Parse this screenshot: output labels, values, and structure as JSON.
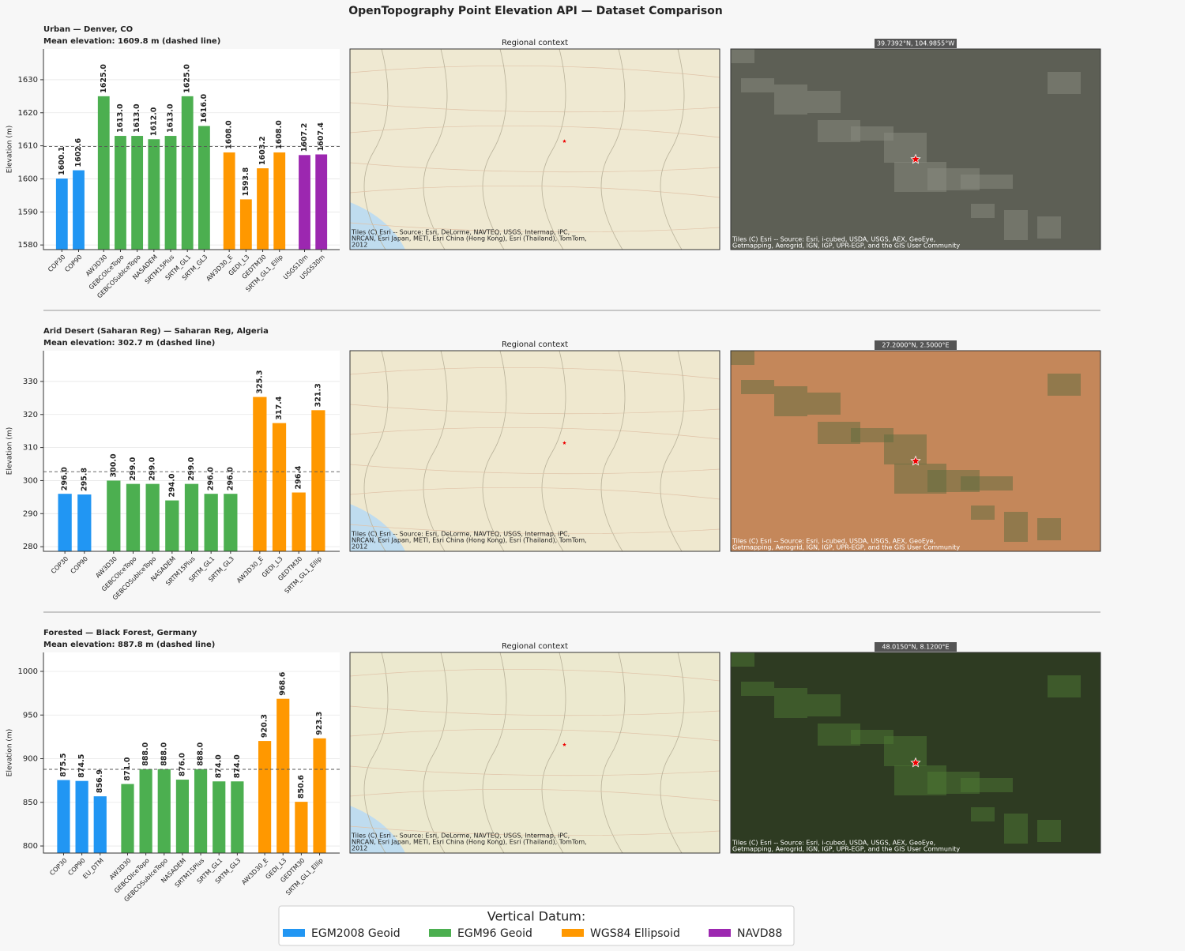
{
  "title": "OpenTopography Point Elevation API — Dataset Comparison",
  "legend": {
    "title": "Vertical Datum:",
    "position": "lower center",
    "entries": [
      {
        "name": "EGM2008 Geoid",
        "color": "#2196f3"
      },
      {
        "name": "EGM96 Geoid",
        "color": "#4caf50"
      },
      {
        "name": "WGS84 Ellipsoid",
        "color": "#ff9800"
      },
      {
        "name": "NAVD88",
        "color": "#9c27b0"
      }
    ]
  },
  "chart_data": [
    {
      "type": "bar",
      "title": "Urban  —  Denver, CO",
      "subtitle": "Mean elevation: 1609.8 m  (dashed line)",
      "mean": 1609.8,
      "ylabel": "Elevation (m)",
      "ylim": [
        1578.6,
        1639.3
      ],
      "yticks": [
        1580,
        1590,
        1600,
        1610,
        1620,
        1630
      ],
      "grid": true,
      "groups": [
        {
          "categories": [
            "COP30",
            "COP90"
          ],
          "values": [
            1600.1,
            1602.6
          ],
          "value_labels": [
            "1600.1",
            "1602.6"
          ]
        },
        {
          "categories": [
            "AW3D30",
            "GEBCOIceTopo",
            "GEBCOSubIceTopo",
            "NASADEM",
            "SRTM15Plus",
            "SRTM_GL1",
            "SRTM_GL3"
          ],
          "values": [
            1625.0,
            1613.0,
            1613.0,
            1612.0,
            1613.0,
            1625.0,
            1616.0
          ],
          "value_labels": [
            "1625.0",
            "1613.0",
            "1613.0",
            "1612.0",
            "1613.0",
            "1625.0",
            "1616.0"
          ]
        },
        {
          "categories": [
            "AW3D30_E",
            "GEDI_L3",
            "GEDTM30",
            "SRTM_GL1_Ellip"
          ],
          "values": [
            1608.0,
            1593.8,
            1603.2,
            1608.0
          ],
          "value_labels": [
            "1608.0",
            "1593.8",
            "1603.2",
            "1608.0"
          ]
        },
        {
          "categories": [
            "USGS10m",
            "USGS30m"
          ],
          "values": [
            1607.2,
            1607.4
          ],
          "value_labels": [
            "1607.2",
            "1607.4"
          ]
        }
      ],
      "map_title": "Regional context",
      "coords": "39.7392°N, 104.9855°W",
      "map_attribution": [
        "Tiles (C) Esri -- Source: Esri, DeLorme, NAVTEQ, USGS, Intermap, iPC,",
        "NRCAN, Esri Japan, METI, Esri China (Hong Kong), Esri (Thailand), TomTom,",
        "2012"
      ],
      "satellite_attribution": [
        "Tiles (C) Esri -- Source: Esri, i-cubed, USDA, USGS, AEX, GeoEye,",
        "Getmapping, Aerogrid, IGN, IGP, UPR-EGP, and the GIS User Community"
      ]
    },
    {
      "type": "bar",
      "title": "Arid Desert (Saharan Reg)  —  Saharan Reg, Algeria",
      "subtitle": "Mean elevation: 302.7 m  (dashed line)",
      "mean": 302.7,
      "ylabel": "Elevation (m)",
      "ylim": [
        278.6,
        339.3
      ],
      "yticks": [
        280,
        290,
        300,
        310,
        320,
        330
      ],
      "grid": true,
      "groups": [
        {
          "categories": [
            "COP30",
            "COP90"
          ],
          "values": [
            296.0,
            295.8
          ],
          "value_labels": [
            "296.0",
            "295.8"
          ]
        },
        {
          "categories": [
            "AW3D30",
            "GEBCOIceTopo",
            "GEBCOSubIceTopo",
            "NASADEM",
            "SRTM15Plus",
            "SRTM_GL1",
            "SRTM_GL3"
          ],
          "values": [
            300.0,
            299.0,
            299.0,
            294.0,
            299.0,
            296.0,
            296.0
          ],
          "value_labels": [
            "300.0",
            "299.0",
            "299.0",
            "294.0",
            "299.0",
            "296.0",
            "296.0"
          ]
        },
        {
          "categories": [
            "AW3D30_E",
            "GEDI_L3",
            "GEDTM30",
            "SRTM_GL1_Ellip"
          ],
          "values": [
            325.3,
            317.4,
            296.4,
            321.3
          ],
          "value_labels": [
            "325.3",
            "317.4",
            "296.4",
            "321.3"
          ]
        }
      ],
      "map_title": "Regional context",
      "coords": "27.2000°N, 2.5000°E",
      "map_attribution": [
        "Tiles (C) Esri -- Source: Esri, DeLorme, NAVTEQ, USGS, Intermap, iPC,",
        "NRCAN, Esri Japan, METI, Esri China (Hong Kong), Esri (Thailand), TomTom,",
        "2012"
      ],
      "satellite_attribution": [
        "Tiles (C) Esri -- Source: Esri, i-cubed, USDA, USGS, AEX, GeoEye,",
        "Getmapping, Aerogrid, IGN, IGP, UPR-EGP, and the GIS User Community"
      ]
    },
    {
      "type": "bar",
      "title": "Forested  —  Black Forest, Germany",
      "subtitle": "Mean elevation: 887.8 m  (dashed line)",
      "mean": 887.8,
      "ylabel": "Elevation (m)",
      "ylim": [
        791.9,
        1021.7
      ],
      "yticks": [
        800,
        850,
        900,
        950,
        1000
      ],
      "grid": true,
      "groups": [
        {
          "categories": [
            "COP30",
            "COP90",
            "EU_DTM"
          ],
          "values": [
            875.5,
            874.5,
            856.9
          ],
          "value_labels": [
            "875.5",
            "874.5",
            "856.9"
          ]
        },
        {
          "categories": [
            "AW3D30",
            "GEBCOIceTopo",
            "GEBCOSubIceTopo",
            "NASADEM",
            "SRTM15Plus",
            "SRTM_GL1",
            "SRTM_GL3"
          ],
          "values": [
            871.0,
            888.0,
            888.0,
            876.0,
            888.0,
            874.0,
            874.0
          ],
          "value_labels": [
            "871.0",
            "888.0",
            "888.0",
            "876.0",
            "888.0",
            "874.0",
            "874.0"
          ]
        },
        {
          "categories": [
            "AW3D30_E",
            "GEDI_L3",
            "GEDTM30",
            "SRTM_GL1_Ellip"
          ],
          "values": [
            920.3,
            968.6,
            850.6,
            923.3
          ],
          "value_labels": [
            "920.3",
            "968.6",
            "850.6",
            "923.3"
          ]
        }
      ],
      "map_title": "Regional context",
      "coords": "48.0150°N, 8.1200°E",
      "map_attribution": [
        "Tiles (C) Esri -- Source: Esri, DeLorme, NAVTEQ, USGS, Intermap, iPC,",
        "NRCAN, Esri Japan, METI, Esri China (Hong Kong), Esri (Thailand), TomTom,",
        "2012"
      ],
      "satellite_attribution": [
        "Tiles (C) Esri -- Source: Esri, i-cubed, USDA, USGS, AEX, GeoEye,",
        "Getmapping, Aerogrid, IGN, IGP, UPR-EGP, and the GIS User Community"
      ]
    }
  ]
}
